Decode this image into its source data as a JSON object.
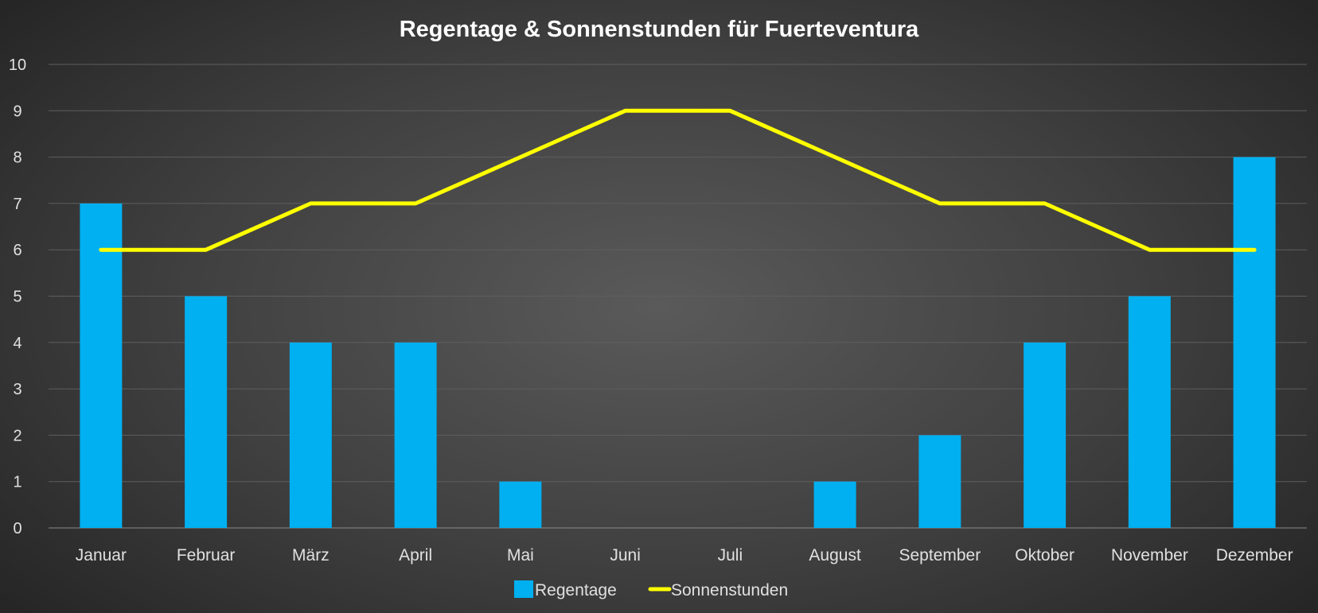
{
  "chart_data": {
    "type": "bar+line",
    "title": "Regentage & Sonnenstunden  für Fuerteventura",
    "categories": [
      "Januar",
      "Februar",
      "März",
      "April",
      "Mai",
      "Juni",
      "Juli",
      "August",
      "September",
      "Oktober",
      "November",
      "Dezember"
    ],
    "series": [
      {
        "name": "Regentage",
        "type": "bar",
        "color": "#00b0f0",
        "values": [
          7,
          5,
          4,
          4,
          1,
          0,
          0,
          1,
          2,
          4,
          5,
          8
        ]
      },
      {
        "name": "Sonnenstunden",
        "type": "line",
        "color": "#ffff00",
        "values": [
          6,
          6,
          7,
          7,
          8,
          9,
          9,
          8,
          7,
          7,
          6,
          6
        ]
      }
    ],
    "ylim": [
      0,
      10
    ],
    "yticks": [
      0,
      1,
      2,
      3,
      4,
      5,
      6,
      7,
      8,
      9,
      10
    ],
    "grid": true,
    "legend": "bottom"
  }
}
